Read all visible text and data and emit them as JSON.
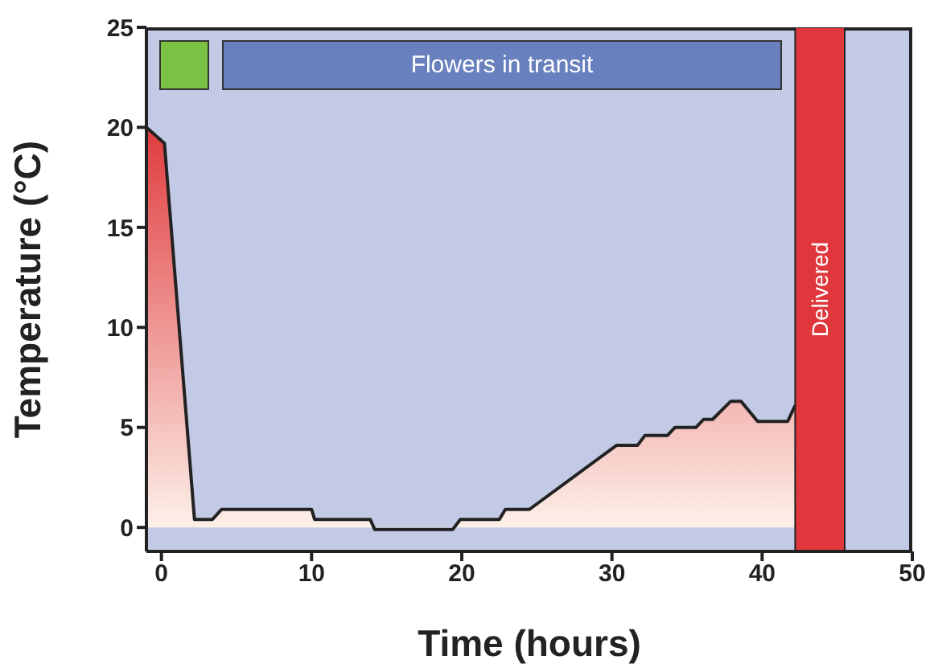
{
  "chart_data": {
    "type": "area",
    "xlabel": "Time (hours)",
    "ylabel": "Temperature (°C)",
    "x": [
      -1,
      0.2,
      2.2,
      3.4,
      4,
      10,
      10.2,
      13.9,
      14.2,
      19.4,
      19.9,
      22.5,
      22.9,
      24.5,
      30.3,
      31.7,
      32.2,
      33.7,
      34.2,
      35.6,
      36.1,
      36.7,
      37.9,
      38.6,
      39.7,
      41.7,
      42.2
    ],
    "series": [
      {
        "color": "#e03c3e",
        "values": [
          20,
          19.2,
          0.4,
          0.4,
          0.9,
          0.9,
          0.4,
          0.4,
          -0.1,
          -0.1,
          0.4,
          0.4,
          0.9,
          0.9,
          4.1,
          4.1,
          4.6,
          4.6,
          5,
          5,
          5.4,
          5.4,
          6.3,
          6.3,
          5.3,
          5.3,
          6.1
        ]
      }
    ],
    "xlim": [
      -1,
      50
    ],
    "xticks": [
      0,
      10,
      20,
      30,
      40,
      50
    ],
    "ylim": [
      -1.2,
      25
    ],
    "yticks": [
      0,
      5,
      10,
      15,
      20,
      25
    ],
    "bands": [
      {
        "axis": "x",
        "from": 42.2,
        "to": 45.5,
        "label": "Delivered",
        "color": "#e0373d"
      }
    ],
    "annotations": [
      "Flowers in transit"
    ],
    "grid": false,
    "legend": false,
    "marker": "none"
  }
}
